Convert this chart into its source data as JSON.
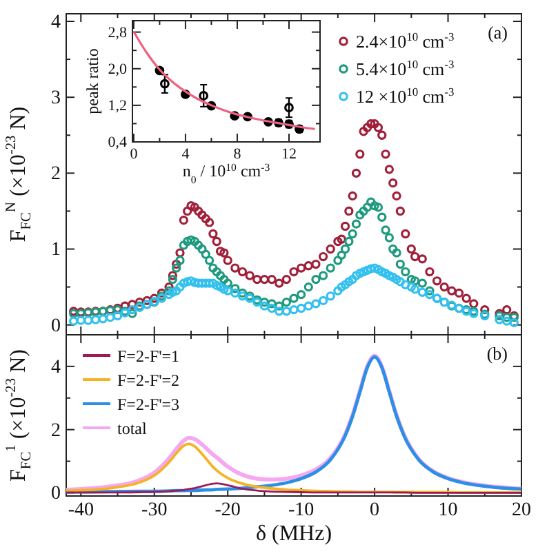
{
  "chart_data": [
    {
      "type": "scatter",
      "ylabel": "F$_{FC}$$^{N}$ (×10$^{-23}$ N)",
      "annotations": [
        "(a)"
      ],
      "xlim": [
        -42,
        20
      ],
      "ylim": [
        -0.13,
        4.1
      ],
      "xticks": [
        -40,
        {
          "value": -35,
          "label": null
        },
        -30,
        {
          "value": -25,
          "label": null
        },
        -20,
        {
          "value": -15,
          "label": null
        },
        -10,
        {
          "value": -5,
          "label": null
        },
        0,
        {
          "value": 5,
          "label": null
        },
        10,
        {
          "value": 15,
          "label": null
        },
        20
      ],
      "yticks": [
        0,
        {
          "value": 0.5,
          "label": null
        },
        1,
        {
          "value": 1.5,
          "label": null
        },
        2,
        {
          "value": 2.5,
          "label": null
        },
        3,
        {
          "value": 3.5,
          "label": null
        },
        4
      ],
      "tick_labels": "y",
      "legend": "top right",
      "marker": "circle",
      "x": [
        -41,
        -40,
        -39,
        -38,
        -37,
        -36,
        -35,
        -34,
        -33,
        -32,
        -31,
        -30,
        -29,
        -28,
        -27.5,
        -27,
        -26.5,
        -26,
        -25.5,
        -25,
        -24.5,
        -24,
        -23.5,
        -23,
        -22.5,
        -22,
        -21.5,
        -21,
        -20.5,
        -20,
        -19,
        -18,
        -17,
        -16,
        -15,
        -14,
        -13,
        -12,
        -11,
        -10,
        -9,
        -8,
        -7,
        -6,
        -5,
        -4.5,
        -4,
        -3.5,
        -3,
        -2.5,
        -2,
        -1.5,
        -1,
        -0.5,
        0,
        0.5,
        1,
        1.5,
        2,
        2.5,
        3,
        3.5,
        4.2,
        5,
        5.5,
        6.5,
        7.5,
        8.5,
        9.5,
        10.5,
        11.5,
        12.5,
        13.5,
        15,
        17,
        18,
        19
      ],
      "series": [
        {
          "name": "2.4×10$^{10}$ cm$^{-3}$",
          "color": "#a0203a",
          "values": [
            0.18,
            0.17,
            0.17,
            0.18,
            0.18,
            0.2,
            0.22,
            0.25,
            0.27,
            0.3,
            0.32,
            0.35,
            0.42,
            0.5,
            0.65,
            0.8,
            0.95,
            1.38,
            1.5,
            1.57,
            1.55,
            1.5,
            1.45,
            1.4,
            1.35,
            1.2,
            1.1,
            0.97,
            0.95,
            0.85,
            0.75,
            0.7,
            0.65,
            0.6,
            0.6,
            0.6,
            0.55,
            0.6,
            0.7,
            0.75,
            0.78,
            0.8,
            0.9,
            1.0,
            1.1,
            1.13,
            1.3,
            1.5,
            1.7,
            2.0,
            2.25,
            2.55,
            2.6,
            2.65,
            2.65,
            2.6,
            2.5,
            2.25,
            2.05,
            1.87,
            1.7,
            1.5,
            1.2,
            1.0,
            0.9,
            0.87,
            0.7,
            0.58,
            0.5,
            0.45,
            0.42,
            0.35,
            0.28,
            0.2,
            0.15,
            0.2,
            0.12
          ]
        },
        {
          "name": "5.4×10$^{10}$ cm$^{-3}$",
          "color": "#1f9a7f",
          "values": [
            0.15,
            0.15,
            0.16,
            0.17,
            0.18,
            0.19,
            0.2,
            0.18,
            0.15,
            0.25,
            0.27,
            0.3,
            0.38,
            0.45,
            0.6,
            0.75,
            0.85,
            1.05,
            1.1,
            1.12,
            1.1,
            1.05,
            1.0,
            0.93,
            0.85,
            0.75,
            0.7,
            0.65,
            0.6,
            0.55,
            0.48,
            0.42,
            0.38,
            0.33,
            0.3,
            0.28,
            0.25,
            0.3,
            0.35,
            0.4,
            0.5,
            0.6,
            0.65,
            0.75,
            0.85,
            0.92,
            1.0,
            1.1,
            1.2,
            1.33,
            1.45,
            1.5,
            1.55,
            1.62,
            1.57,
            1.55,
            1.42,
            1.25,
            1.15,
            1.0,
            0.95,
            0.8,
            0.7,
            0.6,
            0.58,
            0.55,
            0.45,
            0.35,
            0.3,
            0.25,
            0.22,
            0.2,
            0.18,
            0.14,
            0.12,
            0.1,
            0.1
          ]
        },
        {
          "name": "12 ×10$^{10}$ cm$^{-3}$",
          "color": "#33c0ee",
          "values": [
            0.05,
            0.06,
            0.06,
            0.07,
            0.08,
            0.1,
            0.12,
            0.16,
            0.2,
            0.23,
            0.27,
            0.31,
            0.35,
            0.4,
            0.43,
            0.45,
            0.5,
            0.55,
            0.57,
            0.58,
            0.56,
            0.55,
            0.55,
            0.55,
            0.55,
            0.55,
            0.52,
            0.5,
            0.47,
            0.45,
            0.42,
            0.38,
            0.35,
            0.3,
            0.25,
            0.22,
            0.18,
            0.18,
            0.2,
            0.22,
            0.25,
            0.28,
            0.32,
            0.38,
            0.45,
            0.5,
            0.53,
            0.57,
            0.6,
            0.65,
            0.68,
            0.7,
            0.72,
            0.74,
            0.75,
            0.73,
            0.7,
            0.68,
            0.65,
            0.63,
            0.6,
            0.57,
            0.53,
            0.5,
            0.47,
            0.43,
            0.4,
            0.35,
            0.3,
            0.26,
            0.22,
            0.18,
            0.15,
            0.12,
            0.07,
            0.05,
            0.03
          ]
        }
      ]
    },
    {
      "type": "scatter",
      "xlabel": "n$_{0}$ / 10$^{10}$ cm$^{-3}$",
      "ylabel": "peak ratio",
      "xlim": [
        -0.1,
        14.4
      ],
      "ylim": [
        0.4,
        3.05
      ],
      "xticks": [
        0,
        {
          "value": 2,
          "label": null
        },
        4,
        {
          "value": 6,
          "label": null
        },
        8,
        {
          "value": 10,
          "label": null
        },
        12
      ],
      "yticks": [
        {
          "value": 0.4,
          "label": "0,4"
        },
        {
          "value": 0.8,
          "label": null
        },
        {
          "value": 1.2,
          "label": "1,2"
        },
        {
          "value": 1.6,
          "label": null
        },
        {
          "value": 2.0,
          "label": "2,0"
        },
        {
          "value": 2.4,
          "label": null
        },
        {
          "value": 2.8,
          "label": "2,8"
        }
      ],
      "marker": "circle",
      "series": [
        {
          "color": "#000000",
          "x": [
            2,
            4,
            6,
            7.8,
            8.8,
            10.4,
            11.2,
            12,
            12.8
          ],
          "values": [
            1.96,
            1.44,
            1.19,
            0.97,
            0.95,
            0.84,
            0.82,
            0.79,
            0.68
          ],
          "errors": [
            0.04,
            0.04,
            0.03,
            0.03,
            0.04,
            0.05,
            0.07,
            0.08,
            0.07
          ]
        },
        {
          "color": "#000000",
          "x": [
            2.4,
            5.4,
            12
          ],
          "values": [
            1.67,
            1.41,
            1.15
          ],
          "errors": [
            0.2,
            0.24,
            0.21
          ]
        },
        {
          "type": "line",
          "marker": "none",
          "color": "#f06080",
          "x": [
            0,
            1,
            2,
            3,
            4,
            5,
            6,
            7,
            8,
            9,
            10,
            11,
            12,
            13,
            14
          ],
          "values": [
            2.81,
            2.35,
            1.98,
            1.71,
            1.5,
            1.33,
            1.2,
            1.09,
            1.0,
            0.93,
            0.87,
            0.82,
            0.77,
            0.72,
            0.68
          ]
        }
      ]
    },
    {
      "type": "line",
      "xlabel": "δ (MHz)",
      "ylabel": "F$_{FC}$$^{1}$ (×10$^{-23}$ N)",
      "annotations": [
        "(b)"
      ],
      "xlim": [
        -42,
        20
      ],
      "ylim": [
        -0.1,
        5.0
      ],
      "xticks": [
        -40,
        {
          "value": -35,
          "label": null
        },
        -30,
        {
          "value": -25,
          "label": null
        },
        -20,
        {
          "value": -15,
          "label": null
        },
        -10,
        {
          "value": -5,
          "label": null
        },
        0,
        {
          "value": 5,
          "label": null
        },
        10,
        {
          "value": 15,
          "label": null
        },
        20
      ],
      "yticks": [
        0,
        {
          "value": 1,
          "label": null
        },
        2,
        {
          "value": 3,
          "label": null
        },
        4
      ],
      "legend": "top left",
      "line_style": "solid",
      "x": [
        -42,
        -40,
        -36,
        -32,
        -30,
        -28,
        -27,
        -26,
        -25.3,
        -24.5,
        -23.5,
        -22,
        -21.5,
        -20,
        -18,
        -16,
        -14,
        -12,
        -10,
        -8,
        -6,
        -4,
        -3,
        -2,
        -1,
        0,
        1,
        2,
        3,
        4,
        6,
        8,
        10,
        12,
        15,
        20
      ],
      "series": [
        {
          "name": "F=2-F'=1",
          "color": "#9c1a5a",
          "values": [
            0.01,
            0.01,
            0.01,
            0.02,
            0.03,
            0.05,
            0.07,
            0.09,
            0.12,
            0.15,
            0.21,
            0.29,
            0.3,
            0.24,
            0.13,
            0.07,
            0.04,
            0.03,
            0.02,
            0.01,
            0.01,
            0.01,
            0.01,
            0.01,
            0.01,
            0.01,
            0.01,
            0.01,
            0.01,
            0.01,
            0,
            0,
            0,
            0,
            0,
            0
          ]
        },
        {
          "name": "F=2-F'=2",
          "color": "#f5b324",
          "values": [
            0.07,
            0.08,
            0.15,
            0.33,
            0.55,
            0.97,
            1.25,
            1.49,
            1.55,
            1.47,
            1.23,
            0.82,
            0.71,
            0.47,
            0.29,
            0.19,
            0.14,
            0.1,
            0.08,
            0.06,
            0.05,
            0.04,
            0.04,
            0.03,
            0.03,
            0.03,
            0.03,
            0.03,
            0.02,
            0.02,
            0.02,
            0.02,
            0.02,
            0.01,
            0.01,
            0.01
          ]
        },
        {
          "name": "F=2-F'=3",
          "color": "#2b8fe8",
          "values": [
            0.03,
            0.03,
            0.04,
            0.05,
            0.05,
            0.06,
            0.07,
            0.07,
            0.08,
            0.08,
            0.09,
            0.1,
            0.11,
            0.12,
            0.15,
            0.19,
            0.24,
            0.32,
            0.45,
            0.66,
            1.05,
            1.81,
            2.42,
            3.19,
            3.96,
            4.3,
            3.96,
            3.19,
            2.42,
            1.81,
            1.05,
            0.66,
            0.45,
            0.32,
            0.21,
            0.12
          ]
        },
        {
          "name": "total",
          "color": "#f5a8f0",
          "values": [
            0.1,
            0.12,
            0.2,
            0.4,
            0.64,
            1.09,
            1.39,
            1.65,
            1.74,
            1.7,
            1.53,
            1.21,
            1.12,
            0.83,
            0.57,
            0.45,
            0.42,
            0.45,
            0.55,
            0.74,
            1.11,
            1.86,
            2.47,
            3.23,
            4.0,
            4.34,
            3.99,
            3.22,
            2.45,
            1.84,
            1.07,
            0.68,
            0.47,
            0.34,
            0.23,
            0.13
          ]
        }
      ]
    }
  ]
}
